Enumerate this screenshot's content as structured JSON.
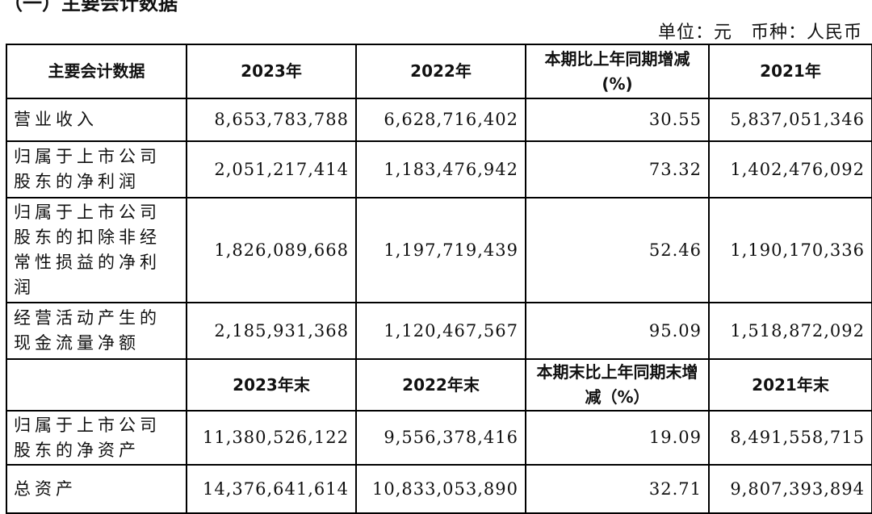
{
  "heading": "（一）主要会计数据",
  "unit": "单位：元　币种：人民币",
  "header1": [
    "主要会计数据",
    "2023年",
    "2022年",
    "本期比上年同期增减(%)",
    "2021年"
  ],
  "rows1": [
    {
      "label": "营业收入",
      "v": [
        "8,653,783,788",
        "6,628,716,402",
        "30.55",
        "5,837,051,346"
      ]
    },
    {
      "label": "归属于上市公司股东的净利润",
      "v": [
        "2,051,217,414",
        "1,183,476,942",
        "73.32",
        "1,402,476,092"
      ]
    },
    {
      "label": "归属于上市公司股东的扣除非经常性损益的净利润",
      "v": [
        "1,826,089,668",
        "1,197,719,439",
        "52.46",
        "1,190,170,336"
      ]
    },
    {
      "label": "经营活动产生的现金流量净额",
      "v": [
        "2,185,931,368",
        "1,120,467,567",
        "95.09",
        "1,518,872,092"
      ]
    }
  ],
  "header2": [
    "",
    "2023年末",
    "2022年末",
    "本期末比上年同期末增减（%）",
    "2021年末"
  ],
  "rows2": [
    {
      "label": "归属于上市公司股东的净资产",
      "v": [
        "11,380,526,122",
        "9,556,378,416",
        "19.09",
        "8,491,558,715"
      ]
    },
    {
      "label": "总资产",
      "v": [
        "14,376,641,614",
        "10,833,053,890",
        "32.71",
        "9,807,393,894"
      ]
    }
  ]
}
